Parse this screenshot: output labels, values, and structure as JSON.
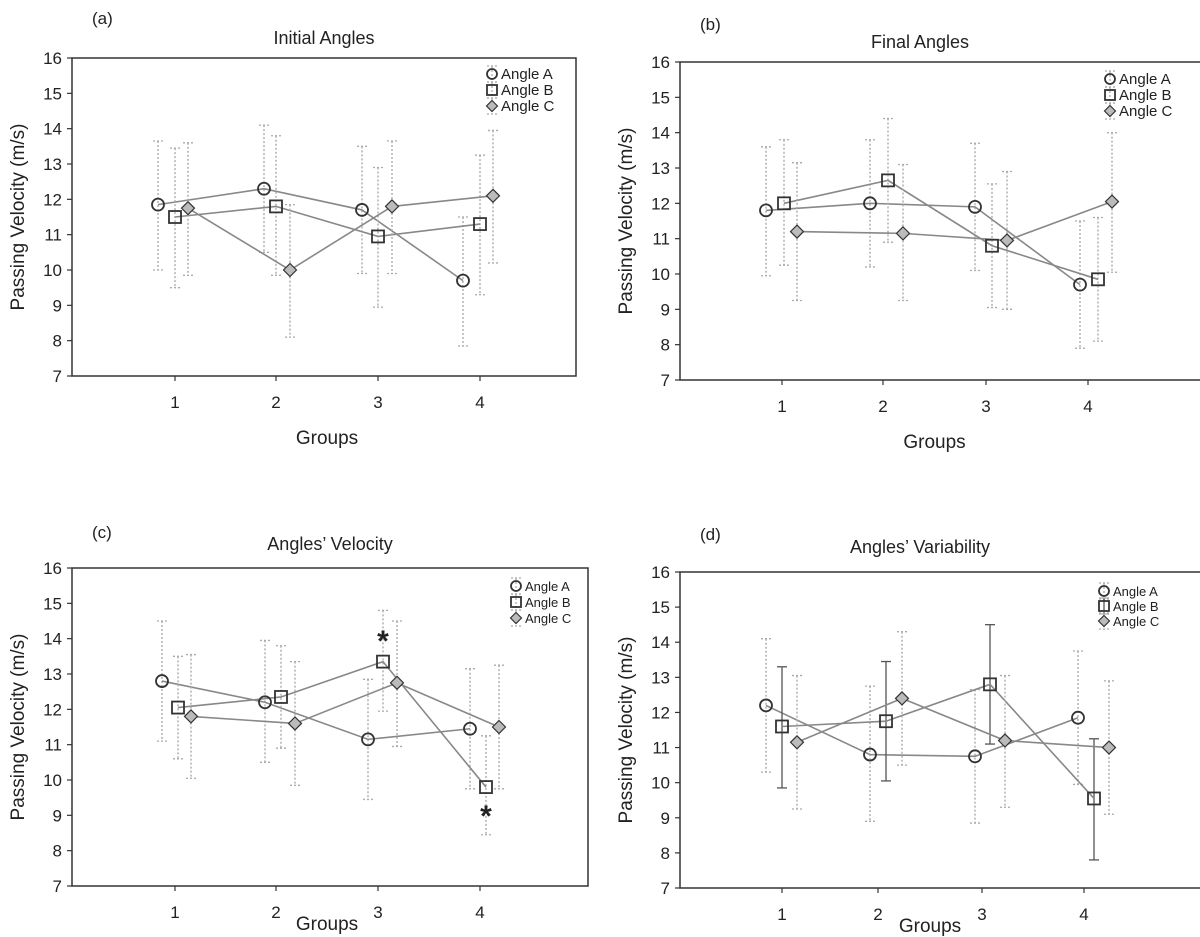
{
  "panels": [
    {
      "tag": "(a)",
      "title": "Initial Angles",
      "xlabel": "Groups",
      "ylabel": "Passing Velocity (m/s)"
    },
    {
      "tag": "(b)",
      "title": "Final Angles",
      "xlabel": "Groups",
      "ylabel": "Passing Velocity (m/s)"
    },
    {
      "tag": "(c)",
      "title": "Angles’ Velocity",
      "xlabel": "Groups",
      "ylabel": "Passing Velocity (m/s)"
    },
    {
      "tag": "(d)",
      "title": "Angles’ Variability",
      "xlabel": "Groups",
      "ylabel": "Passing Velocity (m/s)"
    }
  ],
  "colors": {
    "line": "#888888",
    "error_bar": "#aaaaaa",
    "error_bar_solid": "#555555",
    "marker_stroke": "#333333",
    "diamond_fill": "#bbbbbb",
    "axis": "#333333"
  },
  "chart_data": [
    {
      "type": "line",
      "title": "Initial Angles",
      "xlabel": "Groups",
      "ylabel": "Passing Velocity (m/s)",
      "categories": [
        "1",
        "2",
        "3",
        "4"
      ],
      "yticks": [
        "7",
        "8",
        "9",
        "10",
        "11",
        "12",
        "13",
        "14",
        "15",
        "16"
      ],
      "ylim": [
        7,
        16
      ],
      "error_bar_style": "dotted",
      "legend_position": "top-right",
      "series": [
        {
          "name": "Angle A",
          "marker": "circle",
          "values": [
            11.85,
            12.3,
            11.7,
            9.7
          ],
          "err_low": [
            10.0,
            10.5,
            9.9,
            7.85
          ],
          "err_high": [
            13.65,
            14.1,
            13.5,
            11.5
          ]
        },
        {
          "name": "Angle B",
          "marker": "square",
          "values": [
            11.5,
            11.8,
            10.95,
            11.3
          ],
          "err_low": [
            9.5,
            9.85,
            8.95,
            9.3
          ],
          "err_high": [
            13.45,
            13.8,
            12.9,
            13.25
          ]
        },
        {
          "name": "Angle C",
          "marker": "diamond",
          "values": [
            11.75,
            10.0,
            11.8,
            12.1
          ],
          "err_low": [
            9.85,
            8.1,
            9.9,
            10.2
          ],
          "err_high": [
            13.6,
            11.85,
            13.65,
            13.95
          ]
        }
      ],
      "annotations": []
    },
    {
      "type": "line",
      "title": "Final Angles",
      "xlabel": "Groups",
      "ylabel": "Passing Velocity (m/s)",
      "categories": [
        "1",
        "2",
        "3",
        "4"
      ],
      "yticks": [
        "7",
        "8",
        "9",
        "10",
        "11",
        "12",
        "13",
        "14",
        "15",
        "16"
      ],
      "ylim": [
        7,
        16
      ],
      "error_bar_style": "dotted",
      "legend_position": "top-right",
      "series": [
        {
          "name": "Angle A",
          "marker": "circle",
          "values": [
            11.8,
            12.0,
            11.9,
            9.7
          ],
          "err_low": [
            9.95,
            10.2,
            10.1,
            7.9
          ],
          "err_high": [
            13.6,
            13.8,
            13.7,
            11.5
          ]
        },
        {
          "name": "Angle B",
          "marker": "square",
          "values": [
            12.0,
            12.65,
            10.8,
            9.85
          ],
          "err_low": [
            10.25,
            10.9,
            9.05,
            8.1
          ],
          "err_high": [
            13.8,
            14.4,
            12.55,
            11.6
          ]
        },
        {
          "name": "Angle C",
          "marker": "diamond",
          "values": [
            11.2,
            11.15,
            10.95,
            12.05
          ],
          "err_low": [
            9.25,
            9.25,
            9.0,
            10.05
          ],
          "err_high": [
            13.15,
            13.1,
            12.9,
            14.0
          ]
        }
      ],
      "annotations": []
    },
    {
      "type": "line",
      "title": "Angles’ Velocity",
      "xlabel": "Groups",
      "ylabel": "Passing Velocity (m/s)",
      "categories": [
        "1",
        "2",
        "3",
        "4"
      ],
      "yticks": [
        "7",
        "8",
        "9",
        "10",
        "11",
        "12",
        "13",
        "14",
        "15",
        "16"
      ],
      "ylim": [
        7,
        16
      ],
      "error_bar_style": "dotted",
      "legend_position": "top-right",
      "series": [
        {
          "name": "Angle A",
          "marker": "circle",
          "values": [
            12.8,
            12.2,
            11.15,
            11.45
          ],
          "err_low": [
            11.1,
            10.5,
            9.45,
            9.75
          ],
          "err_high": [
            14.5,
            13.95,
            12.85,
            13.15
          ]
        },
        {
          "name": "Angle B",
          "marker": "square",
          "values": [
            12.05,
            12.35,
            13.35,
            9.8
          ],
          "err_low": [
            10.6,
            10.9,
            11.95,
            8.45
          ],
          "err_high": [
            13.5,
            13.8,
            14.8,
            11.25
          ]
        },
        {
          "name": "Angle C",
          "marker": "diamond",
          "values": [
            11.8,
            11.6,
            12.75,
            11.5
          ],
          "err_low": [
            10.05,
            9.85,
            10.95,
            9.75
          ],
          "err_high": [
            13.55,
            13.35,
            14.5,
            13.25
          ]
        }
      ],
      "annotations": [
        {
          "text": "*",
          "group": 3,
          "y": 14.05
        },
        {
          "text": "*",
          "group": 4,
          "y": 9.1
        }
      ]
    },
    {
      "type": "line",
      "title": "Angles’ Variability",
      "xlabel": "Groups",
      "ylabel": "Passing Velocity (m/s)",
      "categories": [
        "1",
        "2",
        "3",
        "4"
      ],
      "yticks": [
        "7",
        "8",
        "9",
        "10",
        "11",
        "12",
        "13",
        "14",
        "15",
        "16"
      ],
      "ylim": [
        7,
        16
      ],
      "error_bar_style": "mixed",
      "legend_position": "top-right",
      "series": [
        {
          "name": "Angle A",
          "marker": "circle",
          "solid_err": false,
          "values": [
            12.2,
            10.8,
            10.75,
            11.85
          ],
          "err_low": [
            10.3,
            8.9,
            8.85,
            9.95
          ],
          "err_high": [
            14.1,
            12.75,
            12.65,
            13.75
          ]
        },
        {
          "name": "Angle B",
          "marker": "square",
          "solid_err": true,
          "values": [
            11.6,
            11.75,
            12.8,
            9.55
          ],
          "err_low": [
            9.85,
            10.05,
            11.1,
            7.8
          ],
          "err_high": [
            13.3,
            13.45,
            14.5,
            11.25
          ]
        },
        {
          "name": "Angle C",
          "marker": "diamond",
          "solid_err": false,
          "values": [
            11.15,
            12.4,
            11.2,
            11.0
          ],
          "err_low": [
            9.25,
            10.5,
            9.3,
            9.1
          ],
          "err_high": [
            13.05,
            14.3,
            13.05,
            12.9
          ]
        }
      ],
      "annotations": []
    }
  ]
}
